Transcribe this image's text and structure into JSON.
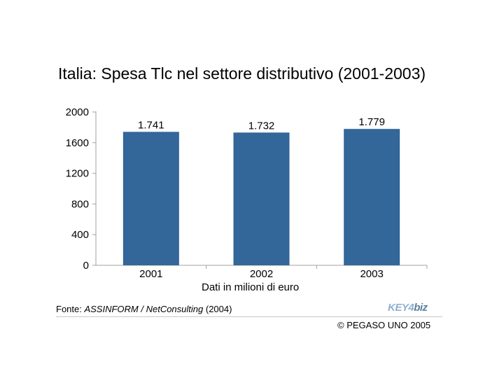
{
  "chart_data": {
    "type": "bar",
    "title": "Italia: Spesa Tlc nel settore distributivo (2001-2003)",
    "categories": [
      "2001",
      "2002",
      "2003"
    ],
    "values": [
      1741,
      1732,
      1779
    ],
    "data_labels": [
      "1.741",
      "1.732",
      "1.779"
    ],
    "xlabel": "Dati in milioni di euro",
    "ylabel": "",
    "ylim": [
      0,
      2000
    ],
    "yticks": [
      0,
      400,
      800,
      1200,
      1600,
      2000
    ],
    "grid": false,
    "bar_color": "#336699"
  },
  "source": {
    "prefix": "Fonte: ",
    "italic": "ASSINFORM / NetConsulting",
    "suffix": " (2004)"
  },
  "copyright": "© PEGASO UNO 2005",
  "logo": {
    "part1": "KEY4",
    "part2": "biz"
  }
}
